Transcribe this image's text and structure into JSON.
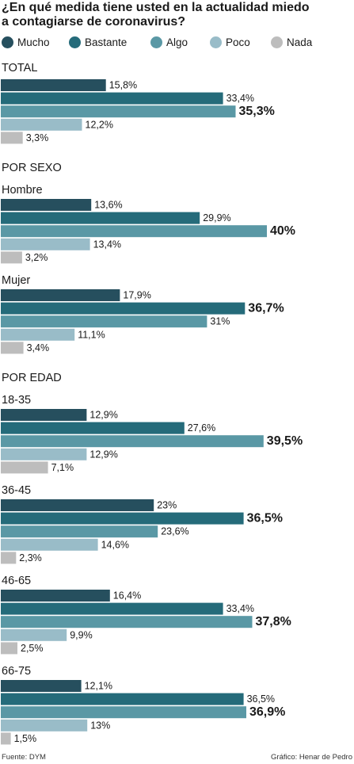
{
  "title_line1": "¿En qué medida tiene usted en la actualidad miedo",
  "title_line2": "a contagiarse de coronavirus?",
  "colors": {
    "mucho": "#264f5e",
    "bastante": "#256b7a",
    "algo": "#5a98a5",
    "poco": "#99bcc8",
    "nada": "#bdbdbd"
  },
  "legend": [
    {
      "label": "Mucho",
      "color": "#264f5e"
    },
    {
      "label": "Bastante",
      "color": "#256b7a"
    },
    {
      "label": "Algo",
      "color": "#5a98a5"
    },
    {
      "label": "Poco",
      "color": "#99bcc8"
    },
    {
      "label": "Nada",
      "color": "#bdbdbd"
    }
  ],
  "sections": {
    "total": "TOTAL",
    "sexo": "POR SEXO",
    "edad": "POR EDAD"
  },
  "chart_data": {
    "type": "bar",
    "orientation": "horizontal",
    "title": "¿En qué medida tiene usted en la actualidad miedo a contagiarse de coronavirus?",
    "series_names": [
      "Mucho",
      "Bastante",
      "Algo",
      "Poco",
      "Nada"
    ],
    "unit": "%",
    "groups": [
      {
        "label": "TOTAL",
        "values": [
          15.8,
          33.4,
          35.3,
          12.2,
          3.3
        ],
        "labels": [
          "15,8%",
          "33,4%",
          "35,3%",
          "12,2%",
          "3,3%"
        ],
        "highlight": 2
      },
      {
        "label": "Hombre",
        "values": [
          13.6,
          29.9,
          40,
          13.4,
          3.2
        ],
        "labels": [
          "13,6%",
          "29,9%",
          "40%",
          "13,4%",
          "3,2%"
        ],
        "highlight": 2
      },
      {
        "label": "Mujer",
        "values": [
          17.9,
          36.7,
          31,
          11.1,
          3.4
        ],
        "labels": [
          "17,9%",
          "36,7%",
          "31%",
          "11,1%",
          "3,4%"
        ],
        "highlight": 1
      },
      {
        "label": "18-35",
        "values": [
          12.9,
          27.6,
          39.5,
          12.9,
          7.1
        ],
        "labels": [
          "12,9%",
          "27,6%",
          "39,5%",
          "12,9%",
          "7,1%"
        ],
        "highlight": 2
      },
      {
        "label": "36-45",
        "values": [
          23,
          36.5,
          23.6,
          14.6,
          2.3
        ],
        "labels": [
          "23%",
          "36,5%",
          "23,6%",
          "14,6%",
          "2,3%"
        ],
        "highlight": 1
      },
      {
        "label": "46-65",
        "values": [
          16.4,
          33.4,
          37.8,
          9.9,
          2.5
        ],
        "labels": [
          "16,4%",
          "33,4%",
          "37,8%",
          "9,9%",
          "2,5%"
        ],
        "highlight": 2
      },
      {
        "label": "66-75",
        "values": [
          12.1,
          36.5,
          36.9,
          13,
          1.5
        ],
        "labels": [
          "12,1%",
          "36,5%",
          "36,9%",
          "13%",
          "1,5%"
        ],
        "highlight": 2
      }
    ]
  },
  "footer": {
    "source": "Fuente: DYM",
    "credit": "Gráfico: Henar de Pedro"
  }
}
